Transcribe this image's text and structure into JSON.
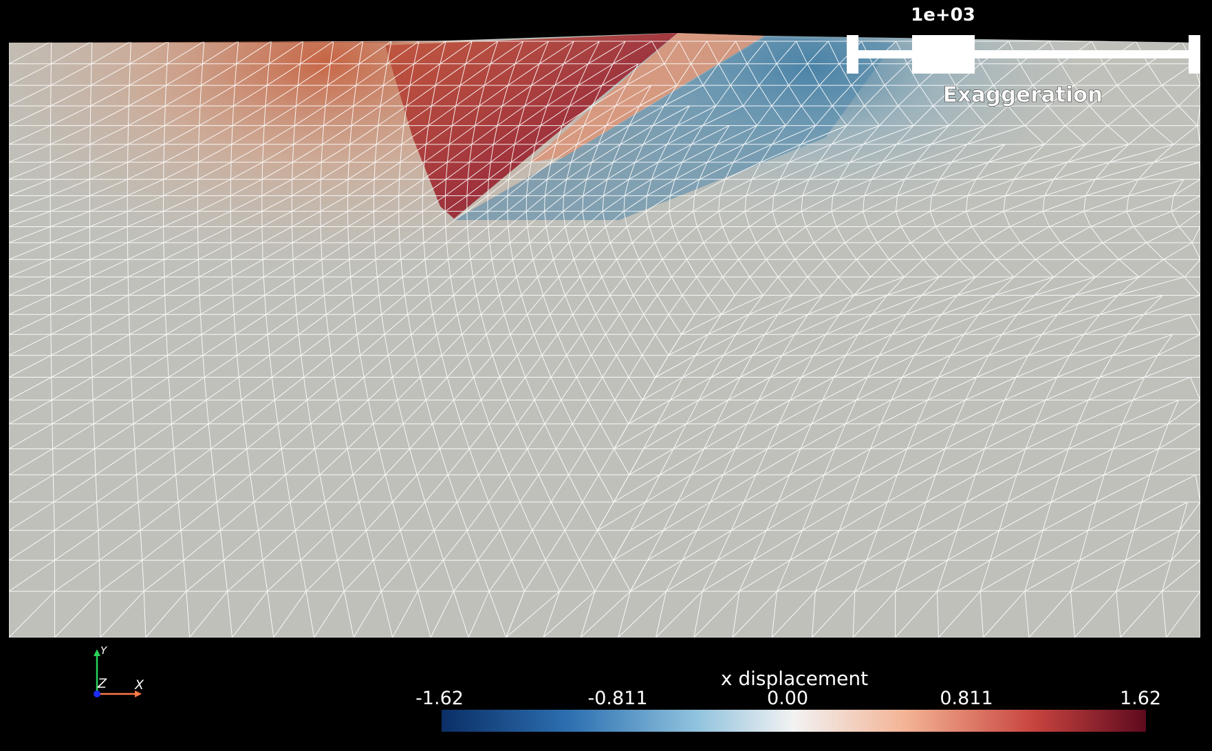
{
  "viewport": {
    "background": "#000000"
  },
  "exaggeration": {
    "value_label": "1e+03",
    "title": "Exaggeration",
    "slider_value": 1000
  },
  "colorbar": {
    "title": "x displacement",
    "tick_labels": [
      "-1.62",
      "-0.811",
      "0.00",
      "0.811",
      "1.62"
    ],
    "range": [
      -1.62,
      1.62
    ],
    "colormap": "diverging blue-white-red",
    "colors": [
      "#0b2f66",
      "#2c6fb0",
      "#8fc2dd",
      "#f2f2f2",
      "#f3b394",
      "#c8443f",
      "#5e0a1e"
    ]
  },
  "axes": {
    "y_label": "Y",
    "z_label": "Z",
    "x_label": "X",
    "x_color": "#ff7a4a",
    "y_color": "#2bd35a",
    "z_color": "#1b2cff"
  },
  "mesh": {
    "base_color": "#bfc0ba",
    "wire_color": "#ffffff",
    "positive_color": "#8a1025",
    "negative_color": "#3f7aa0"
  }
}
